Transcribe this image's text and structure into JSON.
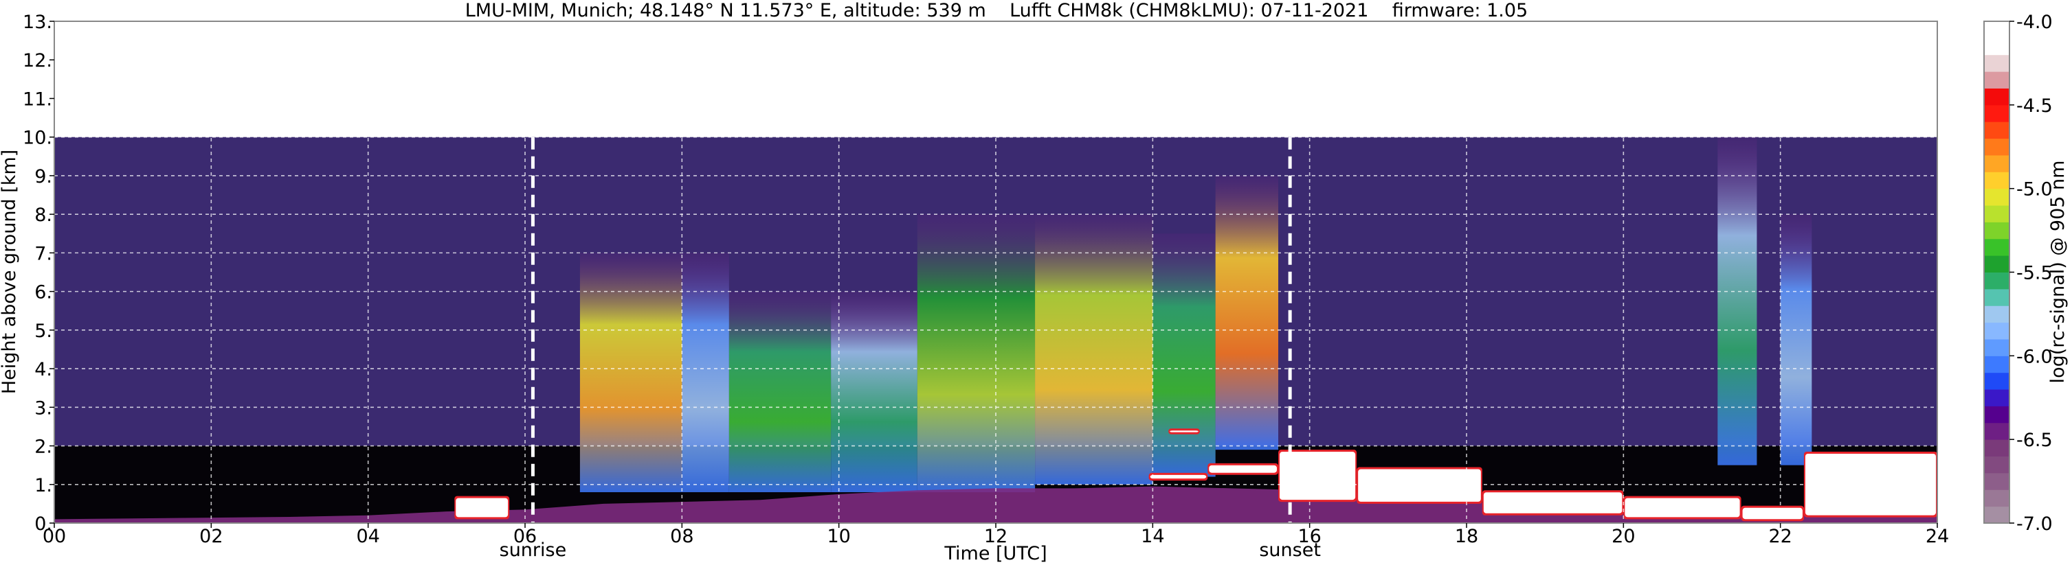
{
  "chart_data": {
    "type": "heatmap",
    "title": "LMU-MIM, Munich; 48.148° N 11.573° E, altitude: 539 m    Lufft CHM8k (CHM8kLMU): 07-11-2021    firmware: 1.05",
    "xlabel": "Time [UTC]",
    "ylabel": "Height above ground [km]",
    "xlim": [
      0,
      24
    ],
    "ylim": [
      0,
      13
    ],
    "x_ticks": [
      "00",
      "02",
      "04",
      "06",
      "08",
      "10",
      "12",
      "14",
      "16",
      "18",
      "20",
      "22",
      "24"
    ],
    "y_ticks": [
      "0.",
      "1.",
      "2.",
      "3.",
      "4.",
      "5.",
      "6.",
      "7.",
      "8.",
      "9.",
      "10.",
      "11.",
      "12.",
      "13."
    ],
    "grid": true,
    "data_top_km": 10.0,
    "colorbar": {
      "label": "log(rc-signal) @ 905 nm",
      "range": [
        -7.0,
        -4.0
      ],
      "ticks": [
        "-4.0",
        "-4.5",
        "-5.0",
        "-5.5",
        "-6.0",
        "-6.5",
        "-7.0"
      ],
      "colors": [
        "#a58fa3",
        "#9a7896",
        "#8d5e8a",
        "#824a80",
        "#7a3a7a",
        "#6e1f84",
        "#55008e",
        "#3a18c8",
        "#1f4af7",
        "#3d7aff",
        "#5f9bff",
        "#88b8ff",
        "#9fc8f0",
        "#55c4b0",
        "#2cae68",
        "#1ea22e",
        "#39c229",
        "#7ed32a",
        "#b9e12d",
        "#e5e52e",
        "#ffcf2c",
        "#ffa624",
        "#ff7a1a",
        "#ff4a12",
        "#ff1a10",
        "#f40b0b",
        "#dc9aa1",
        "#ead3d5",
        "#ffffff",
        "#ffffff"
      ]
    },
    "annotations": [
      {
        "text": "sunrise",
        "x": 6.1
      },
      {
        "text": "sunset",
        "x": 15.75
      }
    ],
    "aerosol_layer_top_km": [
      [
        0,
        0.1
      ],
      [
        1,
        0.12
      ],
      [
        2,
        0.14
      ],
      [
        3,
        0.16
      ],
      [
        4,
        0.2
      ],
      [
        5,
        0.3
      ],
      [
        6,
        0.35
      ],
      [
        7,
        0.5
      ],
      [
        8,
        0.55
      ],
      [
        9,
        0.6
      ],
      [
        10,
        0.75
      ],
      [
        11,
        0.85
      ],
      [
        12,
        0.9
      ],
      [
        13,
        0.9
      ],
      [
        14,
        0.95
      ],
      [
        15,
        0.9
      ],
      [
        16,
        0.85
      ],
      [
        17,
        0.75
      ],
      [
        18,
        0.55
      ],
      [
        19,
        0.45
      ],
      [
        20,
        0.4
      ],
      [
        21,
        0.3
      ],
      [
        22,
        0.35
      ],
      [
        23,
        0.5
      ],
      [
        24,
        0.55
      ]
    ],
    "cloud_layers": [
      {
        "x0": 5.1,
        "x1": 5.8,
        "base_km": 0.1,
        "top_km": 0.7
      },
      {
        "x0": 13.95,
        "x1": 14.7,
        "base_km": 1.1,
        "top_km": 1.3
      },
      {
        "x0": 14.2,
        "x1": 14.6,
        "base_km": 2.3,
        "top_km": 2.45
      },
      {
        "x0": 14.7,
        "x1": 15.6,
        "base_km": 1.25,
        "top_km": 1.55
      },
      {
        "x0": 15.6,
        "x1": 16.6,
        "base_km": 0.55,
        "top_km": 1.9
      },
      {
        "x0": 16.6,
        "x1": 18.2,
        "base_km": 0.5,
        "top_km": 1.45
      },
      {
        "x0": 18.2,
        "x1": 20.0,
        "base_km": 0.2,
        "top_km": 0.85
      },
      {
        "x0": 20.0,
        "x1": 21.5,
        "base_km": 0.1,
        "top_km": 0.7
      },
      {
        "x0": 21.5,
        "x1": 22.3,
        "base_km": 0.05,
        "top_km": 0.45
      },
      {
        "x0": 22.3,
        "x1": 24.0,
        "base_km": 0.15,
        "top_km": 1.85
      }
    ],
    "signal_plumes": [
      {
        "x0": 6.7,
        "x1": 8.0,
        "base_km": 0.8,
        "top_km": 7.0,
        "peak": -5.05
      },
      {
        "x0": 8.0,
        "x1": 8.6,
        "base_km": 0.8,
        "top_km": 7.0,
        "peak": -6.0
      },
      {
        "x0": 8.6,
        "x1": 9.9,
        "base_km": 0.8,
        "top_km": 6.0,
        "peak": -5.6
      },
      {
        "x0": 9.9,
        "x1": 11.0,
        "base_km": 0.8,
        "top_km": 6.0,
        "peak": -5.8
      },
      {
        "x0": 11.0,
        "x1": 12.5,
        "base_km": 0.8,
        "top_km": 8.0,
        "peak": -5.4
      },
      {
        "x0": 12.5,
        "x1": 14.0,
        "base_km": 1.0,
        "top_km": 8.0,
        "peak": -5.2
      },
      {
        "x0": 14.0,
        "x1": 14.8,
        "base_km": 1.2,
        "top_km": 7.5,
        "peak": -5.6
      },
      {
        "x0": 14.8,
        "x1": 15.6,
        "base_km": 1.9,
        "top_km": 9.0,
        "peak": -5.0
      },
      {
        "x0": 21.2,
        "x1": 21.7,
        "base_km": 1.5,
        "top_km": 10.0,
        "peak": -5.8
      },
      {
        "x0": 22.0,
        "x1": 22.4,
        "base_km": 1.5,
        "top_km": 8.0,
        "peak": -6.0
      }
    ]
  }
}
